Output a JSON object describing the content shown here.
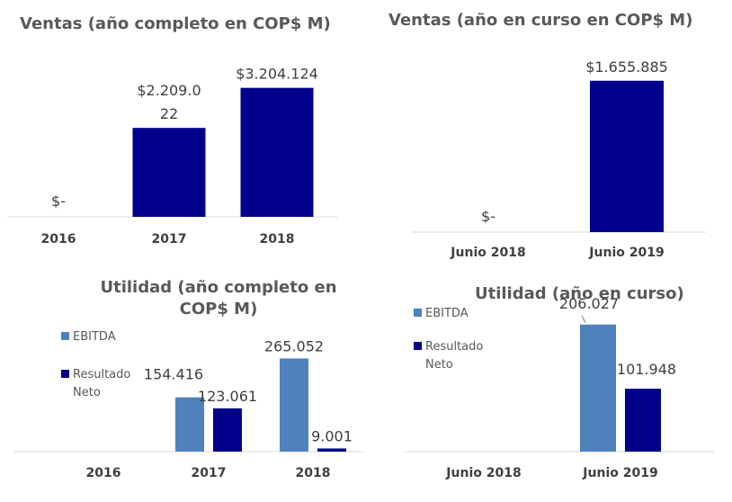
{
  "colors": {
    "navy": "#00008B",
    "steel": "#4F81BD",
    "axis": "#D9D9D9"
  },
  "chart_data": [
    {
      "type": "bar",
      "title": "Ventas (año completo en COP$ M)",
      "categories": [
        "2016",
        "2017",
        "2018"
      ],
      "series": [
        {
          "values": [
            0,
            2209022,
            3204124
          ],
          "labels": [
            "$-",
            "$2.209.0\n22",
            "$3.204.124"
          ]
        }
      ],
      "ylim": [
        0,
        3800000
      ]
    },
    {
      "type": "bar",
      "title": "Ventas (año en curso en COP$ M)",
      "categories": [
        "Junio 2018",
        "Junio 2019"
      ],
      "series": [
        {
          "values": [
            0,
            1655885
          ],
          "labels": [
            "$-",
            "$1.655.885"
          ]
        }
      ],
      "ylim": [
        0,
        1870000
      ]
    },
    {
      "type": "bar",
      "title": "Utilidad (año completo en COP$ M)",
      "categories": [
        "2016",
        "2017",
        "2018"
      ],
      "series": [
        {
          "name": "EBITDA",
          "values": [
            0,
            154416,
            265052
          ],
          "labels": [
            "",
            "154.416",
            "265.052"
          ]
        },
        {
          "name": "Resultado Neto",
          "values": [
            0,
            123061,
            9001
          ],
          "labels": [
            "",
            "123.061",
            "9.001"
          ]
        }
      ],
      "ylim": [
        0,
        302000
      ]
    },
    {
      "type": "bar",
      "title": "Utilidad (año en curso)",
      "categories": [
        "Junio 2018",
        "Junio 2019"
      ],
      "series": [
        {
          "name": "EBITDA",
          "values": [
            0,
            206027
          ],
          "labels": [
            "",
            "206.027"
          ]
        },
        {
          "name": "Resultado Neto",
          "values": [
            0,
            101948
          ],
          "labels": [
            "",
            "101.948"
          ]
        }
      ],
      "ylim": [
        0,
        248000
      ]
    }
  ]
}
